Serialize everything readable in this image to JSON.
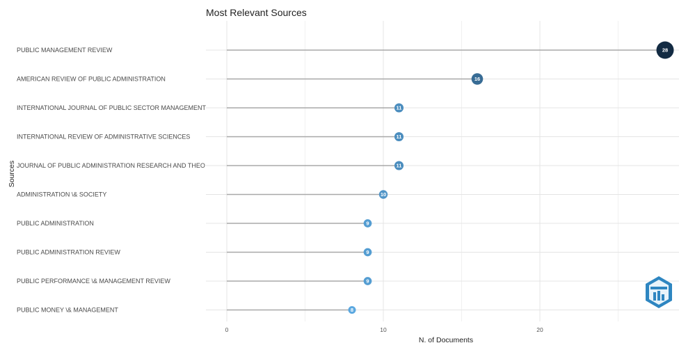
{
  "chart_data": {
    "type": "lollipop",
    "title": "Most Relevant Sources",
    "xlabel": "N. of Documents",
    "ylabel": "Sources",
    "xlim": [
      0,
      28
    ],
    "xticks": [
      0,
      10,
      20
    ],
    "grid": true,
    "categories": [
      "PUBLIC MANAGEMENT REVIEW",
      "AMERICAN REVIEW OF PUBLIC ADMINISTRATION",
      "INTERNATIONAL JOURNAL OF PUBLIC SECTOR MANAGEMENT",
      "INTERNATIONAL REVIEW OF ADMINISTRATIVE SCIENCES",
      "JOURNAL OF PUBLIC ADMINISTRATION RESEARCH AND THEO",
      "ADMINISTRATION \\& SOCIETY",
      "PUBLIC ADMINISTRATION",
      "PUBLIC ADMINISTRATION REVIEW",
      "PUBLIC PERFORMANCE \\& MANAGEMENT REVIEW",
      "PUBLIC MONEY \\& MANAGEMENT"
    ],
    "values": [
      28,
      16,
      11,
      11,
      11,
      10,
      9,
      9,
      9,
      8
    ],
    "color_scale": {
      "low": "#5ba8e0",
      "high": "#132b43"
    }
  },
  "logo": {
    "icon": "bibliometrix-hexagon-logo",
    "color": "#2e86c1"
  }
}
